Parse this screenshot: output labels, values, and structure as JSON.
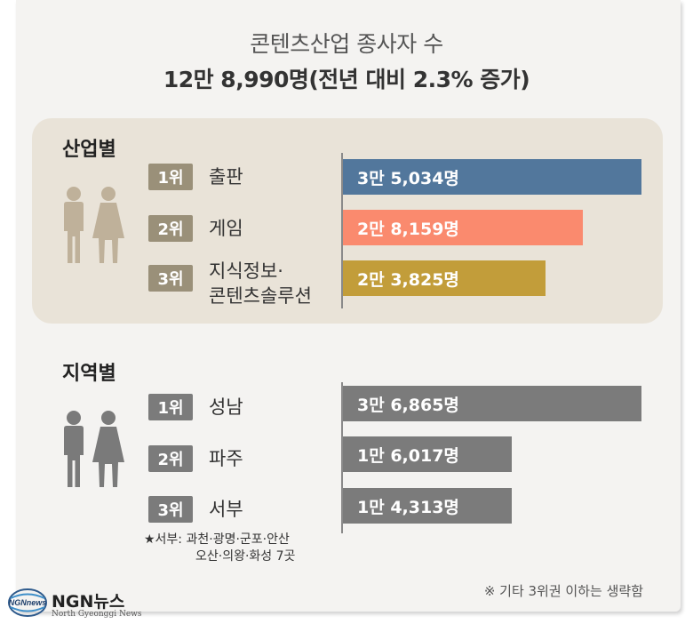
{
  "header": {
    "title": "콘텐츠산업 종사자 수",
    "subtitle": "12만 8,990명(전년 대비 2.3% 증가)"
  },
  "colors": {
    "industry_1": "#52779c",
    "industry_2": "#fa8a6e",
    "industry_3": "#c29d3a",
    "region": "#7b7b7b",
    "industry_person": "#bfb19a",
    "region_person": "#7a7a7a"
  },
  "industry": {
    "section_title": "산업별",
    "person_icon": "male-female-person-icon",
    "items": [
      {
        "rank": "1위",
        "label_lines": [
          "출판"
        ],
        "value_label": "3만 5,034명"
      },
      {
        "rank": "2위",
        "label_lines": [
          "게임"
        ],
        "value_label": "2만 8,159명"
      },
      {
        "rank": "3위",
        "label_lines": [
          "지식정보·",
          "콘텐츠솔루션"
        ],
        "value_label": "2만 3,825명"
      }
    ]
  },
  "region": {
    "section_title": "지역별",
    "person_icon": "male-female-person-icon",
    "items": [
      {
        "rank": "1위",
        "label_lines": [
          "성남"
        ],
        "value_label": "3만 6,865명"
      },
      {
        "rank": "2위",
        "label_lines": [
          "파주"
        ],
        "value_label": "1만 6,017명"
      },
      {
        "rank": "3위",
        "label_lines": [
          "서부"
        ],
        "value_label": "1만 4,313명"
      }
    ],
    "footnote_lines": [
      "★서부: 과천·광명·군포·안산",
      "오산·의왕·화성 7곳"
    ]
  },
  "other_note": "※ 기타 3위권 이하는 생략함",
  "logo": {
    "icon": "ngn-globe-logo-icon",
    "mark_text": "NGNnews",
    "name": "NGN뉴스",
    "sub": "North Gyeonggi News"
  },
  "chart_data": [
    {
      "type": "bar",
      "orientation": "horizontal",
      "title": "산업별",
      "categories": [
        "출판",
        "게임",
        "지식정보·콘텐츠솔루션"
      ],
      "values": [
        35034,
        28159,
        23825
      ],
      "value_labels": [
        "3만 5,034명",
        "2만 8,159명",
        "2만 3,825명"
      ],
      "grid": false
    },
    {
      "type": "bar",
      "orientation": "horizontal",
      "title": "지역별",
      "categories": [
        "성남",
        "파주",
        "서부"
      ],
      "values": [
        36865,
        16017,
        14313
      ],
      "value_labels": [
        "3만 6,865명",
        "1만 6,017명",
        "1만 4,313명"
      ],
      "grid": false
    }
  ]
}
